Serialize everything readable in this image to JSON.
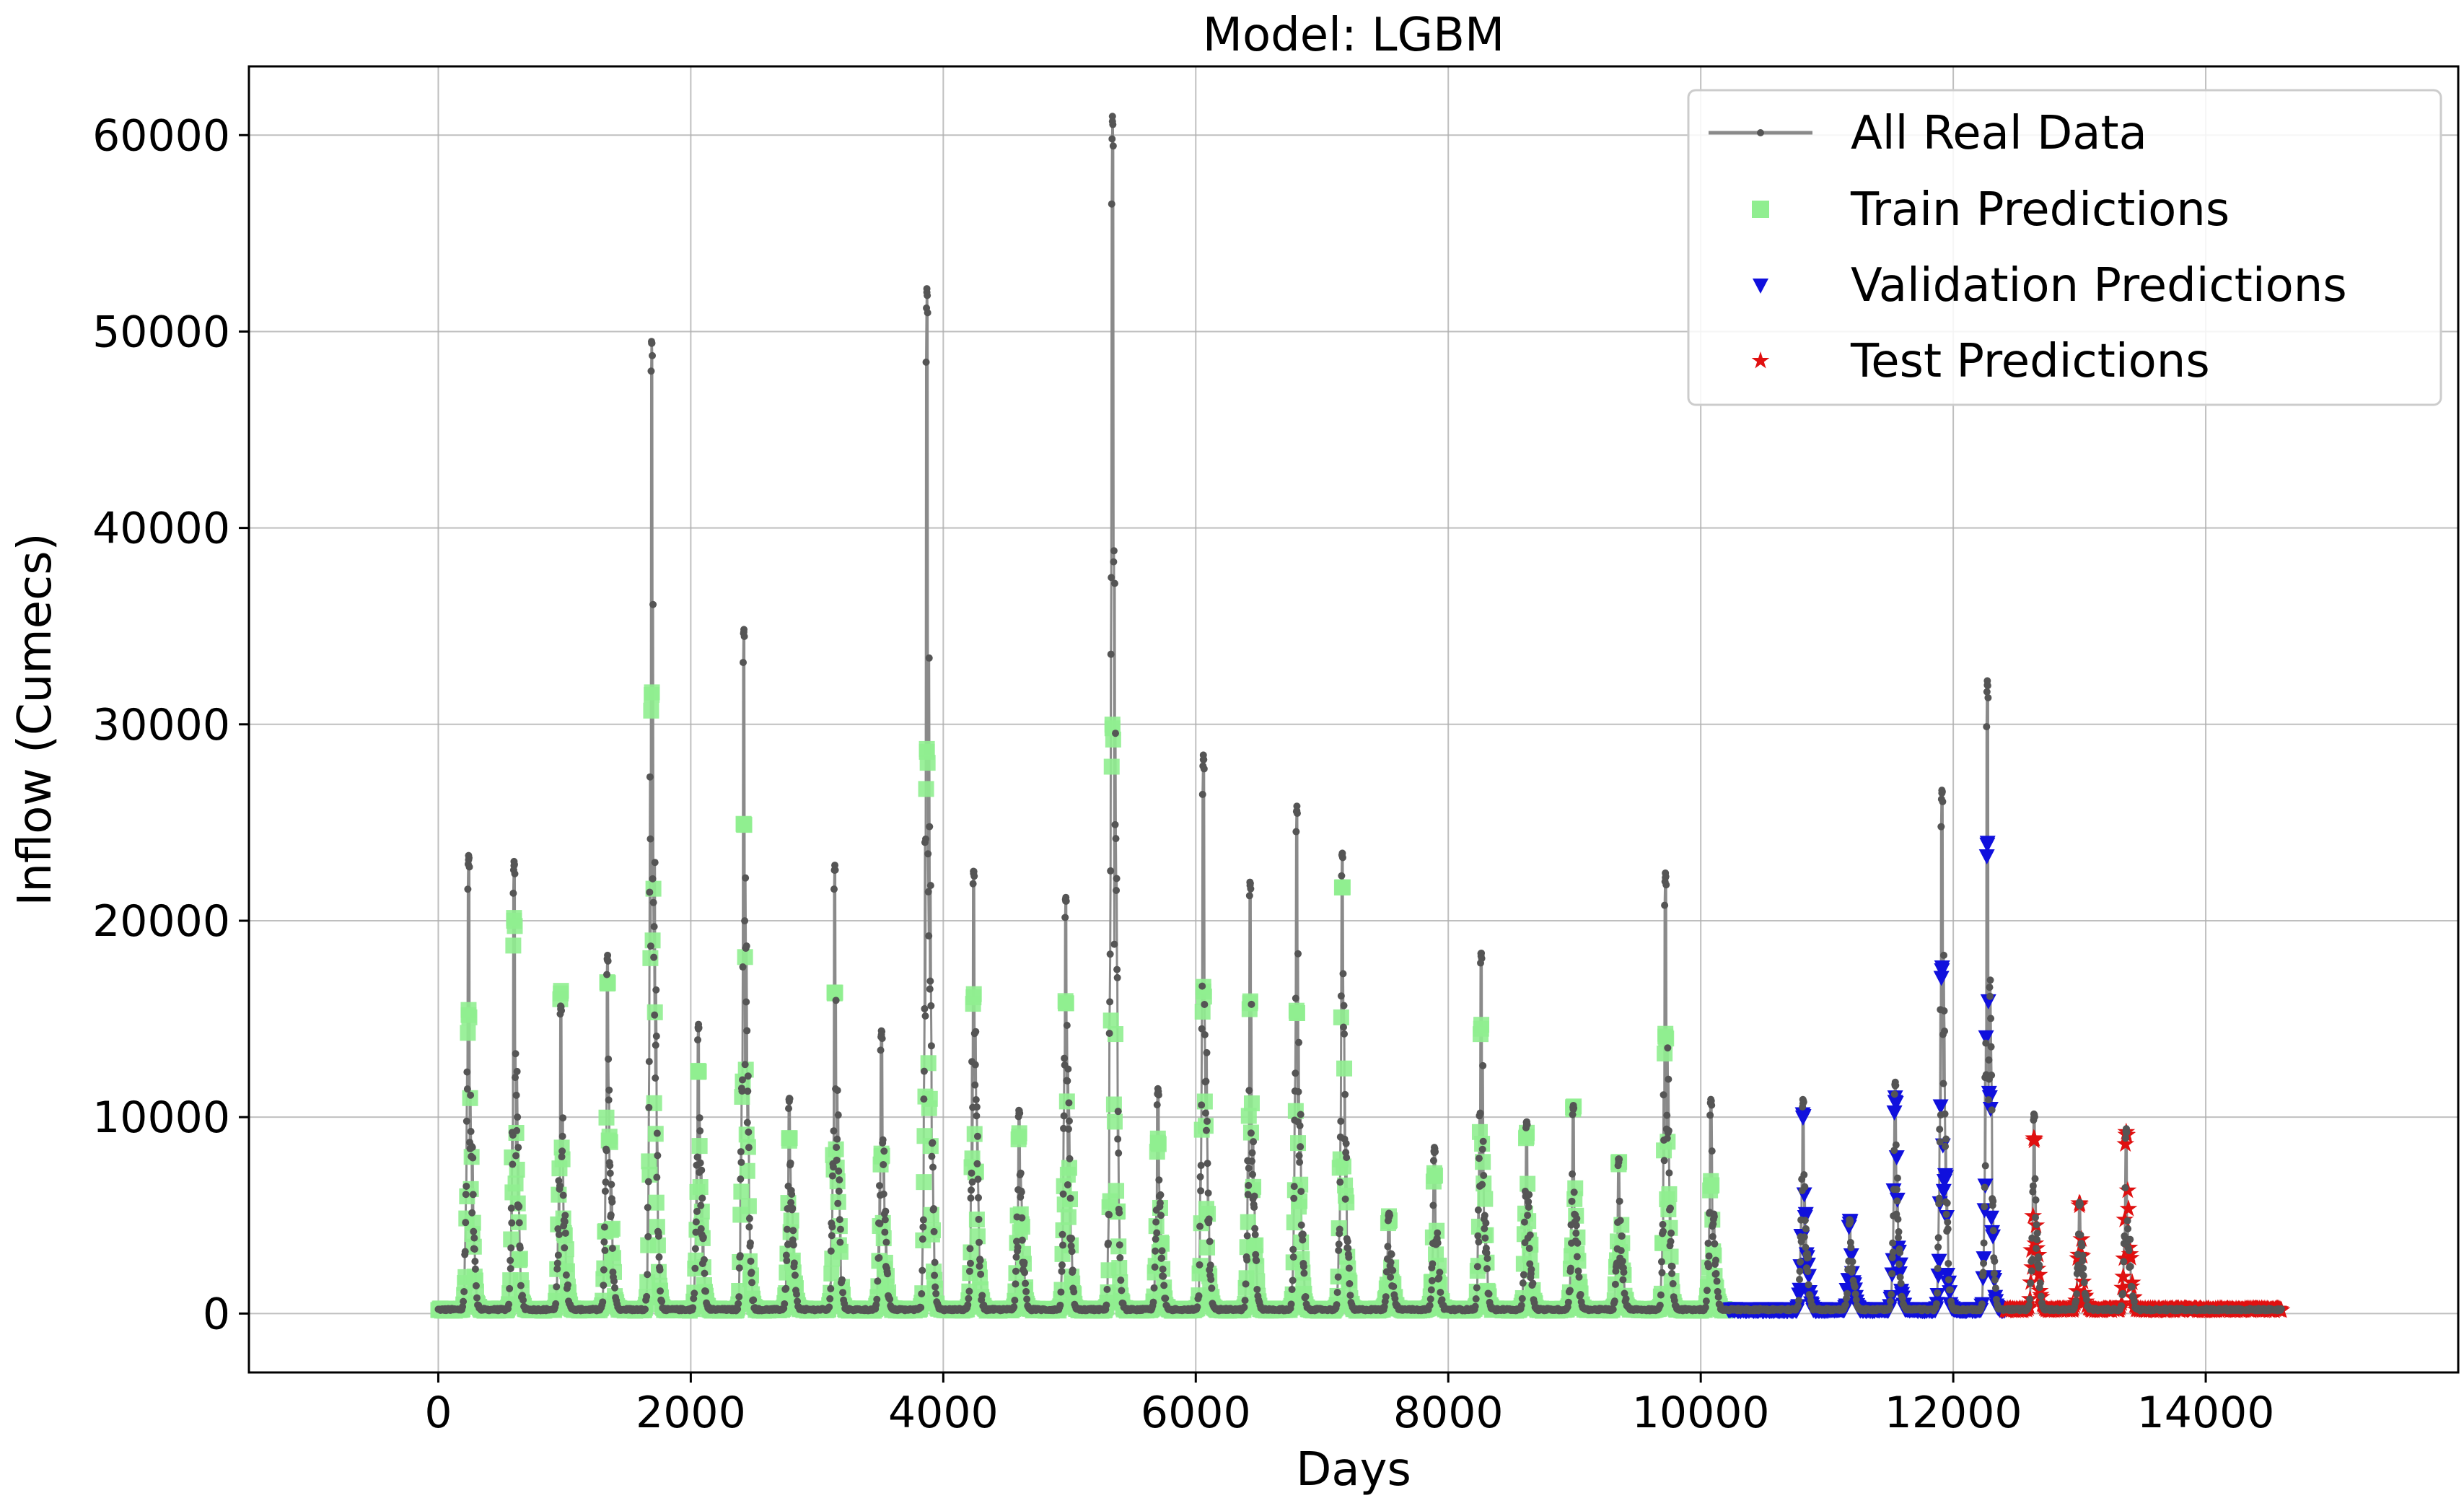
{
  "chart_data": {
    "type": "line",
    "title": "Model: LGBM",
    "xlabel": "Days",
    "ylabel": "Inflow (Cumecs)",
    "xlim": [
      -1500,
      16000
    ],
    "ylim": [
      -3000,
      63500
    ],
    "xticks": [
      0,
      2000,
      4000,
      6000,
      8000,
      10000,
      12000,
      14000
    ],
    "yticks": [
      0,
      10000,
      20000,
      30000,
      40000,
      50000,
      60000
    ],
    "grid": true,
    "legend_position": "top-right",
    "baseline_flow": 200,
    "series": [
      {
        "name": "All Real Data",
        "color": "#555555",
        "marker": "dot",
        "range": [
          0,
          14600
        ],
        "peaks": [
          {
            "day": 240,
            "value": 23100
          },
          {
            "day": 600,
            "value": 22800
          },
          {
            "day": 970,
            "value": 15500
          },
          {
            "day": 1340,
            "value": 18000
          },
          {
            "day": 1690,
            "value": 49400
          },
          {
            "day": 2060,
            "value": 14500
          },
          {
            "day": 2420,
            "value": 34700
          },
          {
            "day": 2780,
            "value": 10800
          },
          {
            "day": 3140,
            "value": 22600
          },
          {
            "day": 3510,
            "value": 14200
          },
          {
            "day": 3870,
            "value": 52000
          },
          {
            "day": 4240,
            "value": 22400
          },
          {
            "day": 4600,
            "value": 10200
          },
          {
            "day": 4970,
            "value": 21000
          },
          {
            "day": 5340,
            "value": 60700
          },
          {
            "day": 5700,
            "value": 11200
          },
          {
            "day": 6060,
            "value": 28200
          },
          {
            "day": 6430,
            "value": 21800
          },
          {
            "day": 6800,
            "value": 25600
          },
          {
            "day": 7160,
            "value": 23300
          },
          {
            "day": 7530,
            "value": 4900
          },
          {
            "day": 7890,
            "value": 8200
          },
          {
            "day": 8260,
            "value": 18200
          },
          {
            "day": 8620,
            "value": 9600
          },
          {
            "day": 8990,
            "value": 10400
          },
          {
            "day": 9350,
            "value": 7700
          },
          {
            "day": 9720,
            "value": 22200
          },
          {
            "day": 10080,
            "value": 10700
          },
          {
            "day": 10810,
            "value": 10700
          },
          {
            "day": 11180,
            "value": 4600
          },
          {
            "day": 11540,
            "value": 11600
          },
          {
            "day": 11910,
            "value": 26500
          },
          {
            "day": 12270,
            "value": 32000
          },
          {
            "day": 12640,
            "value": 10000
          },
          {
            "day": 13000,
            "value": 5500
          },
          {
            "day": 13370,
            "value": 9200
          }
        ]
      },
      {
        "name": "Train Predictions",
        "color": "#90ee90",
        "marker": "square",
        "range": [
          0,
          10220
        ],
        "peaks": [
          {
            "day": 240,
            "value": 15200
          },
          {
            "day": 600,
            "value": 20000
          },
          {
            "day": 970,
            "value": 16300
          },
          {
            "day": 1340,
            "value": 16800
          },
          {
            "day": 1690,
            "value": 31500
          },
          {
            "day": 2060,
            "value": 12300
          },
          {
            "day": 2420,
            "value": 24900
          },
          {
            "day": 2780,
            "value": 8800
          },
          {
            "day": 3140,
            "value": 16300
          },
          {
            "day": 3510,
            "value": 8000
          },
          {
            "day": 3870,
            "value": 28600
          },
          {
            "day": 4240,
            "value": 16100
          },
          {
            "day": 4600,
            "value": 9000
          },
          {
            "day": 4970,
            "value": 15800
          },
          {
            "day": 5340,
            "value": 29800
          },
          {
            "day": 5700,
            "value": 8700
          },
          {
            "day": 6060,
            "value": 16400
          },
          {
            "day": 6430,
            "value": 15800
          },
          {
            "day": 6800,
            "value": 15300
          },
          {
            "day": 7160,
            "value": 21700
          },
          {
            "day": 7530,
            "value": 4700
          },
          {
            "day": 7890,
            "value": 7000
          },
          {
            "day": 8260,
            "value": 14500
          },
          {
            "day": 8620,
            "value": 9000
          },
          {
            "day": 8990,
            "value": 10400
          },
          {
            "day": 9350,
            "value": 7600
          },
          {
            "day": 9720,
            "value": 14100
          },
          {
            "day": 10080,
            "value": 6500
          }
        ]
      },
      {
        "name": "Validation Predictions",
        "color": "#1010dd",
        "marker": "triangle-down",
        "range": [
          10220,
          12410
        ],
        "peaks": [
          {
            "day": 10810,
            "value": 10000
          },
          {
            "day": 11180,
            "value": 4600
          },
          {
            "day": 11540,
            "value": 10800
          },
          {
            "day": 11910,
            "value": 17500
          },
          {
            "day": 12270,
            "value": 23900
          }
        ]
      },
      {
        "name": "Test Predictions",
        "color": "#e01010",
        "marker": "star",
        "range": [
          12410,
          14600
        ],
        "peaks": [
          {
            "day": 12640,
            "value": 8800
          },
          {
            "day": 13000,
            "value": 5500
          },
          {
            "day": 13370,
            "value": 9100
          }
        ]
      }
    ]
  }
}
